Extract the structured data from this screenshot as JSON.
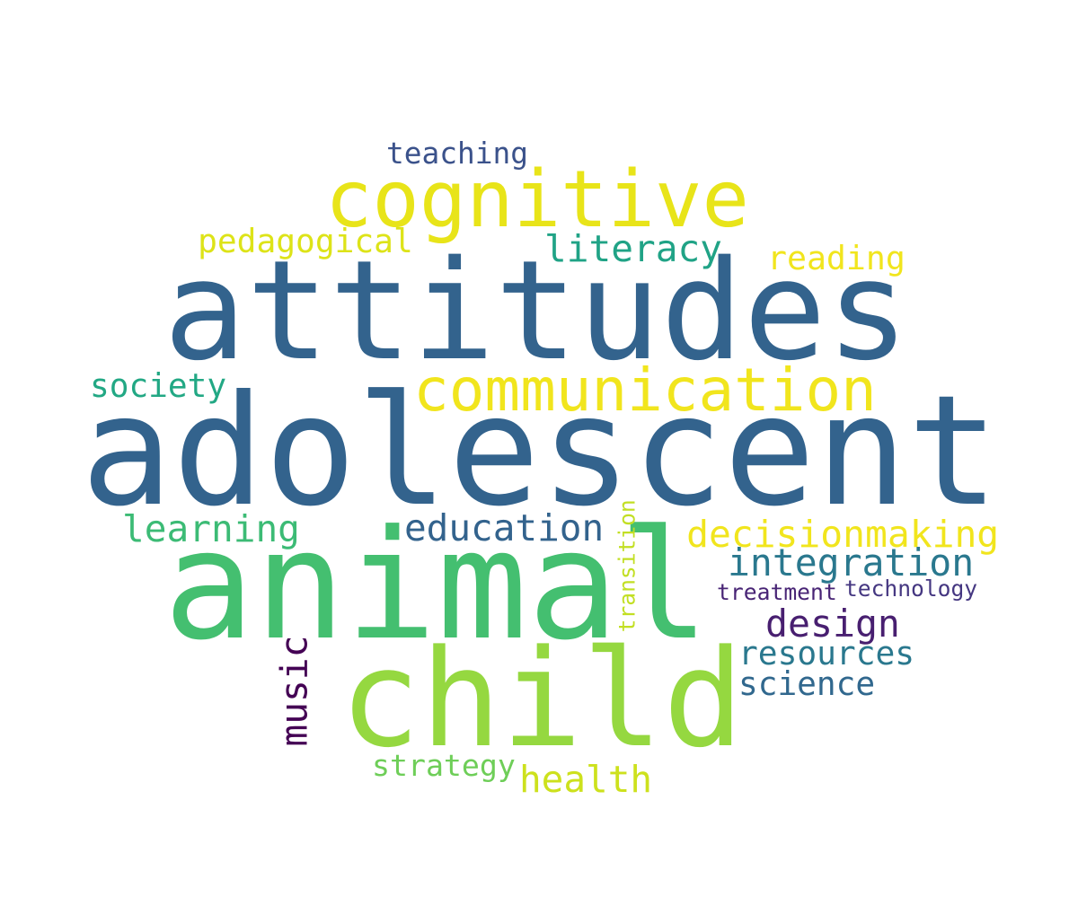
{
  "words": [
    {
      "text": "adolescent",
      "color": "#33638d"
    },
    {
      "text": "attitudes",
      "color": "#33638d"
    },
    {
      "text": "animal",
      "color": "#44bf70"
    },
    {
      "text": "child",
      "color": "#95d840"
    },
    {
      "text": "cognitive",
      "color": "#e8e419"
    },
    {
      "text": "communication",
      "color": "#f1e51d"
    },
    {
      "text": "decisionmaking",
      "color": "#f1e51d"
    },
    {
      "text": "integration",
      "color": "#2a788e"
    },
    {
      "text": "education",
      "color": "#33638d"
    },
    {
      "text": "learning",
      "color": "#3cbb75"
    },
    {
      "text": "literacy",
      "color": "#20a386"
    },
    {
      "text": "pedagogical",
      "color": "#dde318"
    },
    {
      "text": "design",
      "color": "#481f70"
    },
    {
      "text": "resources",
      "color": "#2a788e"
    },
    {
      "text": "health",
      "color": "#cde11d"
    },
    {
      "text": "science",
      "color": "#31688e"
    },
    {
      "text": "reading",
      "color": "#f1e51d"
    },
    {
      "text": "society",
      "color": "#22a884"
    },
    {
      "text": "teaching",
      "color": "#3b528b"
    },
    {
      "text": "strategy",
      "color": "#6ece58"
    },
    {
      "text": "music",
      "color": "#440154"
    },
    {
      "text": "treatment",
      "color": "#482475"
    },
    {
      "text": "technology",
      "color": "#453781"
    },
    {
      "text": "transition",
      "color": "#c2df23"
    }
  ]
}
